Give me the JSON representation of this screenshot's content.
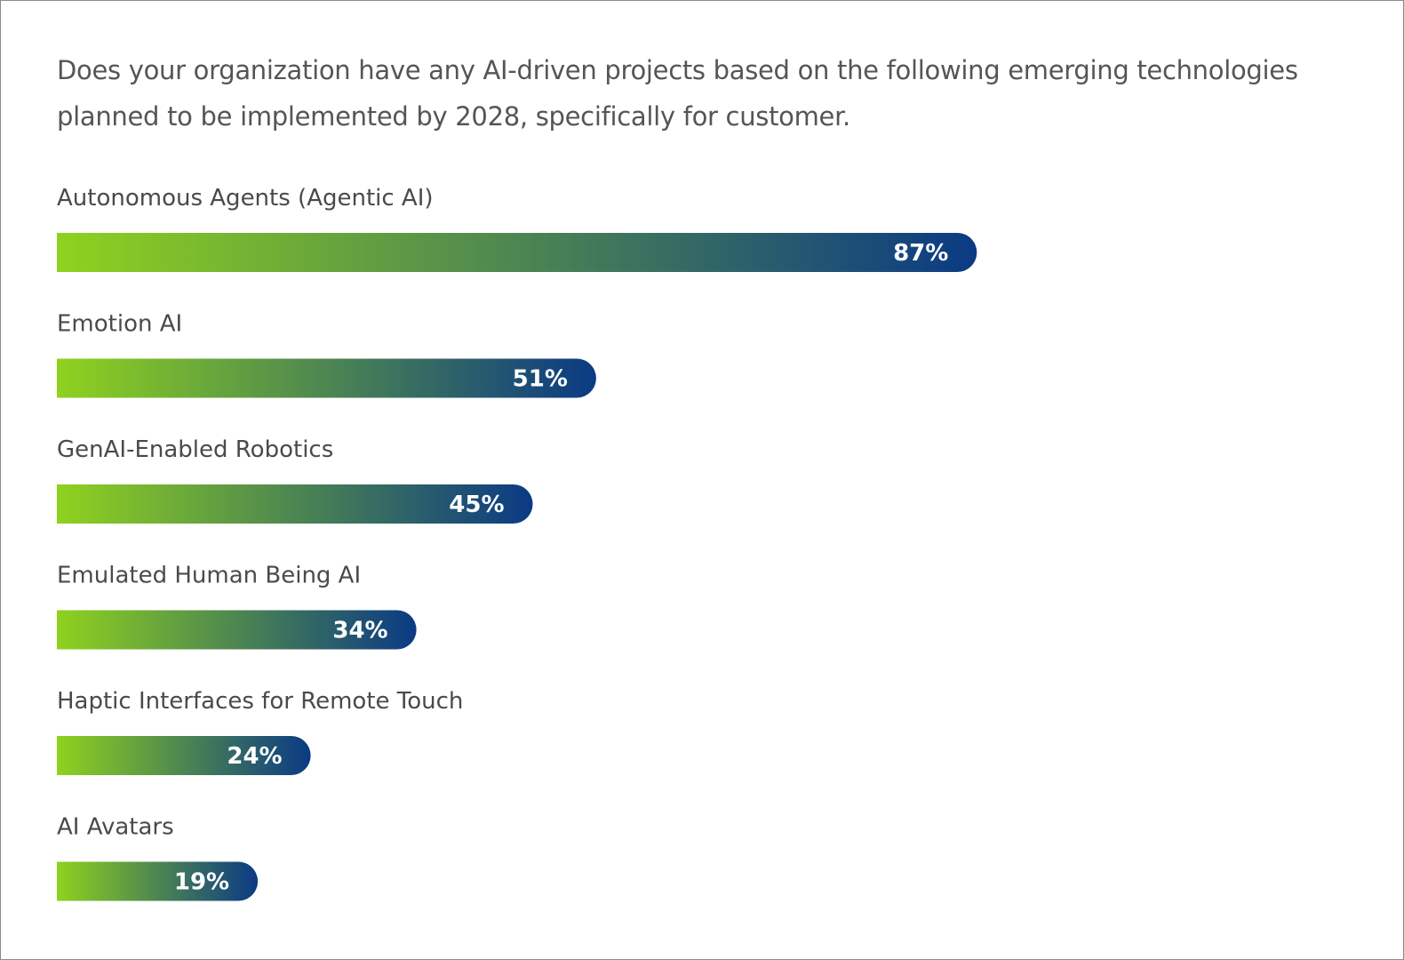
{
  "chart_data": {
    "type": "bar",
    "title": "Does your organization have any AI-driven projects based on the following emerging technologies planned to be implemented by 2028, specifically for customer.",
    "categories": [
      "Autonomous Agents (Agentic AI)",
      "Emotion AI",
      "GenAI-Enabled Robotics",
      "Emulated Human Being AI",
      "Haptic Interfaces for Remote Touch",
      "AI Avatars"
    ],
    "values": [
      87,
      51,
      45,
      34,
      24,
      19
    ],
    "value_labels": [
      "87%",
      "51%",
      "45%",
      "34%",
      "24%",
      "19%"
    ],
    "gradient": [
      "#8fd21e",
      "#0b3a84"
    ]
  }
}
